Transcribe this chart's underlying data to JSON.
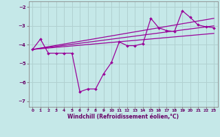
{
  "xlabel": "Windchill (Refroidissement éolien,°C)",
  "bg_color": "#c5e8e8",
  "line_color": "#990099",
  "grid_color": "#b0d0d0",
  "xlim": [
    -0.5,
    23.5
  ],
  "ylim": [
    -7.3,
    -1.7
  ],
  "yticks": [
    -7,
    -6,
    -5,
    -4,
    -3,
    -2
  ],
  "xticks": [
    0,
    1,
    2,
    3,
    4,
    5,
    6,
    7,
    8,
    9,
    10,
    11,
    12,
    13,
    14,
    15,
    16,
    17,
    18,
    19,
    20,
    21,
    22,
    23
  ],
  "main_x": [
    0,
    1,
    2,
    3,
    4,
    5,
    6,
    7,
    8,
    9,
    10,
    11,
    12,
    13,
    14,
    15,
    16,
    17,
    18,
    19,
    20,
    21,
    22,
    23
  ],
  "main_y": [
    -4.25,
    -3.7,
    -4.45,
    -4.45,
    -4.45,
    -4.45,
    -6.5,
    -6.35,
    -6.35,
    -5.55,
    -4.95,
    -3.85,
    -4.05,
    -4.05,
    -3.95,
    -2.6,
    -3.1,
    -3.25,
    -3.3,
    -2.2,
    -2.55,
    -2.95,
    -3.05,
    -3.1
  ],
  "trend1_x": [
    0,
    23
  ],
  "trend1_y": [
    -4.25,
    -2.6
  ],
  "trend2_x": [
    0,
    23
  ],
  "trend2_y": [
    -4.25,
    -3.0
  ],
  "trend3_x": [
    0,
    23
  ],
  "trend3_y": [
    -4.25,
    -3.4
  ]
}
